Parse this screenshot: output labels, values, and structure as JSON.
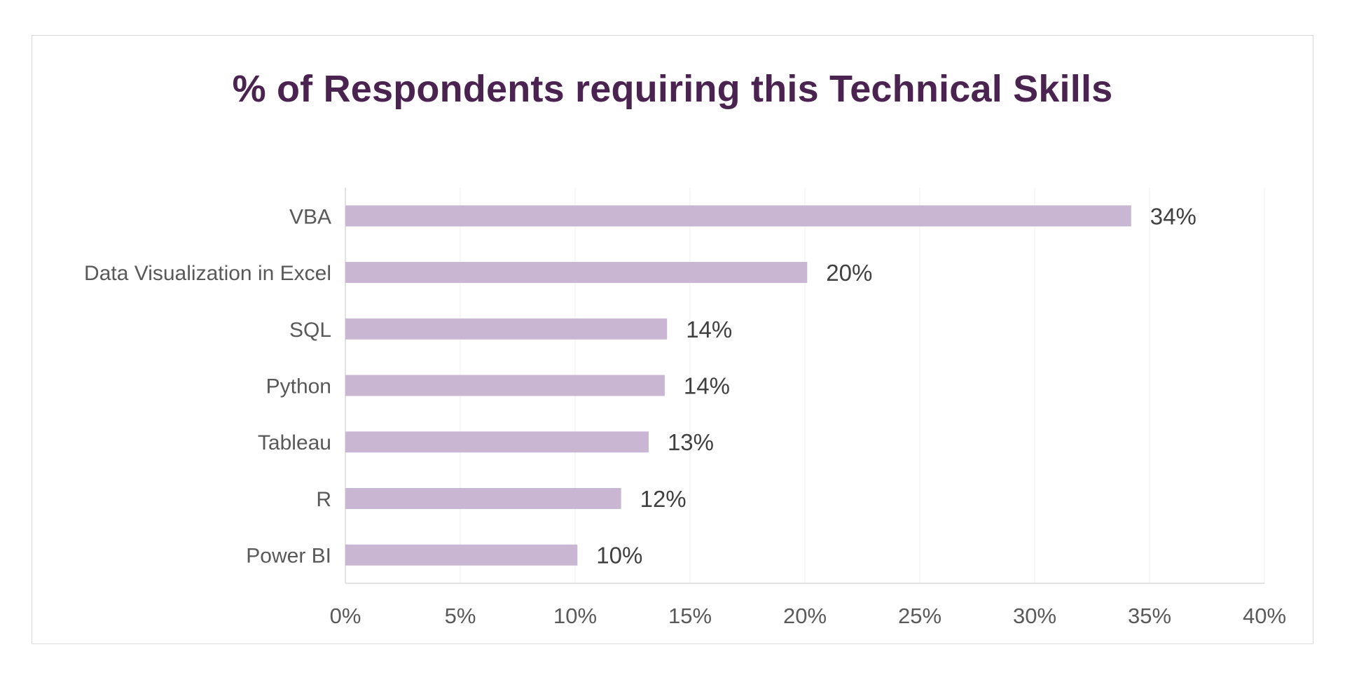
{
  "chart_data": {
    "type": "bar",
    "orientation": "horizontal",
    "title": "% of Respondents requiring this Technical Skills",
    "categories": [
      "VBA",
      "Data Visualization in Excel",
      "SQL",
      "Python",
      "Tableau",
      "R",
      "Power BI"
    ],
    "values": [
      34.2,
      20.1,
      14,
      13.9,
      13.2,
      12,
      10.1
    ],
    "value_labels": [
      "34%",
      "20%",
      "14%",
      "14%",
      "13%",
      "12%",
      "10%"
    ],
    "xlim": [
      0,
      40
    ],
    "ticks": [
      0,
      5,
      10,
      15,
      20,
      25,
      30,
      35,
      40
    ],
    "tick_labels": [
      "0%",
      "5%",
      "10%",
      "15%",
      "20%",
      "25%",
      "30%",
      "35%",
      "40%"
    ],
    "xlabel": "",
    "ylabel": "",
    "grid": true,
    "legend": "none",
    "colors": {
      "bar": "#c8b6d2",
      "title": "#4a2350",
      "grid": "#efefef",
      "axis": "#d9d9d9"
    }
  }
}
